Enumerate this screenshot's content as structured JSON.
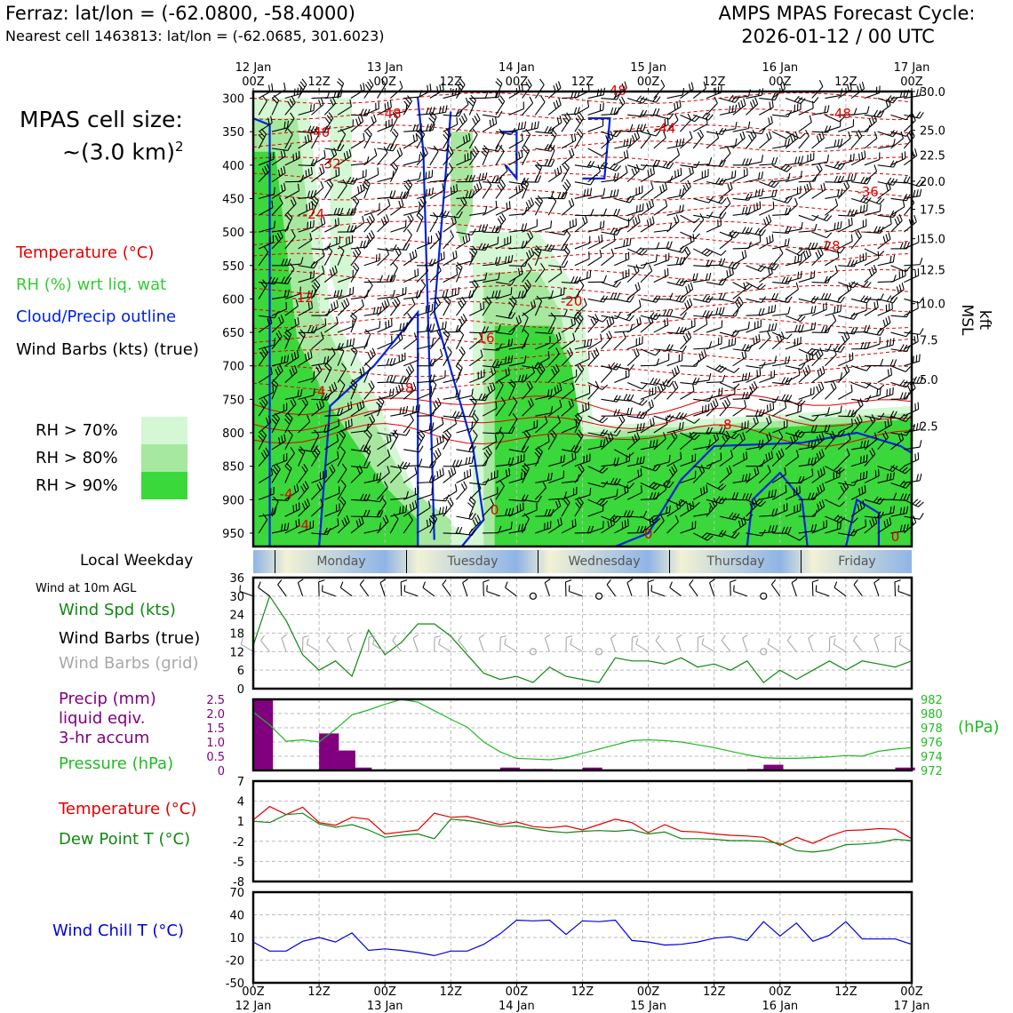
{
  "header": {
    "location": "Ferraz: lat/lon = (-62.0800, -58.4000)",
    "nearest_cell": "Nearest cell 1463813: lat/lon = (-62.0685, 301.6023)",
    "cycle_label": "AMPS MPAS Forecast Cycle:",
    "cycle_value": "2026-01-12 / 00 UTC"
  },
  "cell_size": {
    "label": "MPAS cell size:",
    "value": "~(3.0 km)",
    "exponent": "2"
  },
  "colors": {
    "temperature": "#e00000",
    "rh": "#33cc33",
    "rh70": "#d4f7d4",
    "rh80": "#a6e8a0",
    "rh90": "#3ad83a",
    "cloud": "#0022dd",
    "wind": "#000000",
    "wind_grid": "#a8a8a8",
    "wind_speed": "#118811",
    "precip": "#800080",
    "pressure": "#22bb22",
    "dewpoint": "#118811",
    "wind_chill": "#0000dd",
    "day_strip_blue": "#8fb4e6",
    "day_strip_light": "#f2f2d4"
  },
  "legend_top": [
    {
      "text": "Temperature (°C)",
      "color": "#e00000"
    },
    {
      "text": "RH (%) wrt liq. wat",
      "color": "#33cc33"
    },
    {
      "text": "Cloud/Precip outline",
      "color": "#0022dd"
    },
    {
      "text": "Wind Barbs (kts) (true)",
      "color": "#000000"
    }
  ],
  "rh_legend": [
    {
      "text": "RH > 70%",
      "color": "#d4f7d4"
    },
    {
      "text": "RH > 80%",
      "color": "#a6e8a0"
    },
    {
      "text": "RH > 90%",
      "color": "#3ad83a"
    }
  ],
  "time_axis": {
    "top_labels": [
      {
        "top": "12 Jan",
        "bottom": "00Z"
      },
      {
        "top": "",
        "bottom": "12Z"
      },
      {
        "top": "13 Jan",
        "bottom": "00Z"
      },
      {
        "top": "",
        "bottom": "12Z"
      },
      {
        "top": "14 Jan",
        "bottom": "00Z"
      },
      {
        "top": "",
        "bottom": "12Z"
      },
      {
        "top": "15 Jan",
        "bottom": "00Z"
      },
      {
        "top": "",
        "bottom": "12Z"
      },
      {
        "top": "16 Jan",
        "bottom": "00Z"
      },
      {
        "top": "",
        "bottom": "12Z"
      },
      {
        "top": "17 Jan",
        "bottom": "00Z"
      }
    ],
    "bottom_labels": [
      {
        "top": "00Z",
        "bottom": "12 Jan"
      },
      {
        "top": "12Z",
        "bottom": ""
      },
      {
        "top": "00Z",
        "bottom": "13 Jan"
      },
      {
        "top": "12Z",
        "bottom": ""
      },
      {
        "top": "00Z",
        "bottom": "14 Jan"
      },
      {
        "top": "12Z",
        "bottom": ""
      },
      {
        "top": "00Z",
        "bottom": "15 Jan"
      },
      {
        "top": "12Z",
        "bottom": ""
      },
      {
        "top": "00Z",
        "bottom": "16 Jan"
      },
      {
        "top": "12Z",
        "bottom": ""
      },
      {
        "top": "00Z",
        "bottom": "17 Jan"
      }
    ]
  },
  "weekday": {
    "label": "Local Weekday",
    "days": [
      "Monday",
      "Tuesday",
      "Wednesday",
      "Thursday",
      "Friday"
    ]
  },
  "chart_data": [
    {
      "type": "heatmap",
      "name": "vertical cross-section",
      "x_hours": [
        0,
        120
      ],
      "y_pressure_hpa": [
        970,
        290
      ],
      "y_tick_labels": [
        "300",
        "350",
        "400",
        "450",
        "500",
        "550",
        "600",
        "650",
        "700",
        "750",
        "800",
        "850",
        "900",
        "950"
      ],
      "y_ticks_hpa": [
        300,
        350,
        400,
        450,
        500,
        550,
        600,
        650,
        700,
        750,
        800,
        850,
        900,
        950
      ],
      "right_axis_label": "kft MSL",
      "right_tick_labels": [
        "30.0",
        "25.0",
        "22.5",
        "20.0",
        "17.5",
        "15.0",
        "12.5",
        "10.0",
        "7.5",
        "5.0",
        "2.5"
      ],
      "right_ticks_hpa": [
        290,
        348,
        385,
        424,
        466,
        510,
        556,
        607,
        661,
        720,
        790
      ],
      "temperature_contour_labels": [
        {
          "text": "-48",
          "hour": 66,
          "hpa": 295
        },
        {
          "text": "-48",
          "hour": 25,
          "hpa": 330
        },
        {
          "text": "-48",
          "hour": 107,
          "hpa": 330
        },
        {
          "text": "-40",
          "hour": 12,
          "hpa": 358
        },
        {
          "text": "-44",
          "hour": 75,
          "hpa": 352
        },
        {
          "text": "-32",
          "hour": 14,
          "hpa": 405
        },
        {
          "text": "-36",
          "hour": 112,
          "hpa": 447
        },
        {
          "text": "-24",
          "hour": 11,
          "hpa": 480
        },
        {
          "text": "-28",
          "hour": 105,
          "hpa": 528
        },
        {
          "text": "-12",
          "hour": 9,
          "hpa": 605
        },
        {
          "text": "-20",
          "hour": 58,
          "hpa": 610
        },
        {
          "text": "-16",
          "hour": 42,
          "hpa": 665
        },
        {
          "text": "-8",
          "hour": 28,
          "hpa": 740
        },
        {
          "text": "-4",
          "hour": 12,
          "hpa": 745
        },
        {
          "text": "-8",
          "hour": 86,
          "hpa": 795
        },
        {
          "text": "-4",
          "hour": 6,
          "hpa": 898
        },
        {
          "text": "0",
          "hour": 44,
          "hpa": 922
        },
        {
          "text": "-4",
          "hour": 9,
          "hpa": 945
        },
        {
          "text": "0",
          "hour": 72,
          "hpa": 958
        },
        {
          "text": "0",
          "hour": 117,
          "hpa": 962
        }
      ]
    },
    {
      "type": "line",
      "name": "wind at 10m",
      "title": "Wind at 10m AGL",
      "ylim": [
        0,
        36
      ],
      "y_ticks": [
        0,
        6,
        12,
        18,
        24,
        30,
        36
      ],
      "labels": [
        "Wind Spd (kts)",
        "Wind Barbs (true)",
        "Wind Barbs (grid)"
      ],
      "x_hours": [
        0,
        3,
        6,
        9,
        12,
        15,
        18,
        21,
        24,
        27,
        30,
        33,
        36,
        39,
        42,
        45,
        48,
        51,
        54,
        57,
        60,
        63,
        66,
        69,
        72,
        75,
        78,
        81,
        84,
        87,
        90,
        93,
        96,
        99,
        102,
        105,
        108,
        111,
        114,
        117,
        120
      ],
      "wind_speed_kts": [
        14,
        30,
        22,
        11,
        6,
        9,
        4,
        19,
        11,
        15,
        21,
        21,
        17,
        11,
        5,
        3,
        4,
        2,
        7,
        4,
        3,
        2,
        10,
        9,
        9,
        8,
        10,
        7,
        8,
        6,
        9,
        2,
        6,
        3,
        6,
        9,
        6,
        9,
        8,
        7,
        9
      ]
    },
    {
      "type": "bar",
      "name": "precip and pressure",
      "labels": [
        "Precip (mm)",
        "liquid eqiv.",
        "3-hr accum",
        "Pressure (hPa)"
      ],
      "precip_ylim": [
        0,
        2.5
      ],
      "precip_ticks": [
        "0",
        "0.5",
        "1.0",
        "1.5",
        "2.0",
        "2.5"
      ],
      "pressure_ylim": [
        972,
        982
      ],
      "pressure_ticks": [
        "972",
        "974",
        "976",
        "978",
        "980",
        "982"
      ],
      "pressure_axis_label": "(hPa)",
      "x_hours": [
        0,
        3,
        6,
        9,
        12,
        15,
        18,
        21,
        24,
        27,
        30,
        33,
        36,
        39,
        42,
        45,
        48,
        51,
        54,
        57,
        60,
        63,
        66,
        69,
        72,
        75,
        78,
        81,
        84,
        87,
        90,
        93,
        96,
        99,
        102,
        105,
        108,
        111,
        114,
        117,
        120
      ],
      "precip_mm": [
        2.5,
        0,
        0,
        0,
        1.3,
        0.7,
        0.1,
        0,
        0,
        0,
        0,
        0,
        0,
        0,
        0,
        0.1,
        0.05,
        0.05,
        0,
        0,
        0.1,
        0,
        0,
        0,
        0,
        0,
        0,
        0,
        0,
        0,
        0.05,
        0.2,
        0,
        0,
        0,
        0,
        0,
        0,
        0,
        0.1,
        0
      ],
      "pressure_hpa": [
        980.2,
        978.4,
        976.1,
        976.3,
        976.0,
        977.8,
        979.8,
        980.5,
        981.3,
        982.0,
        981.6,
        980.4,
        979.2,
        978.1,
        976.0,
        974.6,
        973.7,
        973.6,
        973.5,
        973.8,
        974.4,
        975.0,
        975.6,
        976.2,
        976.3,
        976.2,
        976.0,
        975.6,
        975.2,
        974.7,
        974.2,
        973.8,
        973.7,
        973.7,
        973.8,
        973.9,
        974.1,
        974.0,
        974.7,
        975.0,
        975.2
      ]
    },
    {
      "type": "line",
      "name": "temperature and dew point",
      "labels": [
        "Temperature (°C)",
        "Dew Point T (°C)"
      ],
      "ylim": [
        -8,
        7
      ],
      "y_ticks": [
        "7",
        "4",
        "1",
        "-2",
        "-5",
        "-8"
      ],
      "x_hours": [
        0,
        3,
        6,
        9,
        12,
        15,
        18,
        21,
        24,
        27,
        30,
        33,
        36,
        39,
        42,
        45,
        48,
        51,
        54,
        57,
        60,
        63,
        66,
        69,
        72,
        75,
        78,
        81,
        84,
        87,
        90,
        93,
        96,
        99,
        102,
        105,
        108,
        111,
        114,
        117,
        120
      ],
      "temperature_c": [
        1.2,
        3.2,
        2.0,
        3.1,
        0.8,
        0.4,
        1.6,
        1.3,
        -0.9,
        -0.6,
        -0.3,
        2.2,
        1.6,
        1.7,
        1.1,
        0.5,
        0.9,
        0.2,
        0.0,
        0.3,
        -0.3,
        0.5,
        1.3,
        0.8,
        -0.7,
        0.5,
        -0.5,
        -0.6,
        -0.9,
        -1.1,
        -1.2,
        -1.4,
        -2.6,
        -1.4,
        -2.3,
        -1.2,
        -0.4,
        -0.3,
        -0.1,
        -0.2,
        -1.6
      ],
      "dewpoint_c": [
        1.0,
        0.8,
        2.0,
        2.2,
        0.6,
        0.1,
        0.5,
        -0.3,
        -1.4,
        -1.1,
        -0.9,
        -1.6,
        1.3,
        1.1,
        0.7,
        0.2,
        0.3,
        -0.1,
        -0.5,
        -0.7,
        -0.5,
        -0.4,
        -0.5,
        -0.3,
        -0.9,
        -0.6,
        -1.6,
        -1.6,
        -1.7,
        -1.9,
        -1.9,
        -2.0,
        -2.3,
        -3.4,
        -3.6,
        -3.3,
        -2.5,
        -2.4,
        -2.2,
        -1.7,
        -1.9
      ]
    },
    {
      "type": "line",
      "name": "wind chill",
      "labels": [
        "Wind Chill T (°C)"
      ],
      "ylim": [
        -50,
        70
      ],
      "y_ticks": [
        "70",
        "40",
        "10",
        "-20",
        "-50"
      ],
      "x_hours": [
        0,
        3,
        6,
        9,
        12,
        15,
        18,
        21,
        24,
        27,
        30,
        33,
        36,
        39,
        42,
        45,
        48,
        51,
        54,
        57,
        60,
        63,
        66,
        69,
        72,
        75,
        78,
        81,
        84,
        87,
        90,
        93,
        96,
        99,
        102,
        105,
        108,
        111,
        114,
        117,
        120
      ],
      "wind_chill_c": [
        4,
        -8,
        -8,
        5,
        10,
        4,
        16,
        -7,
        -5,
        -7,
        -10,
        -14,
        -8,
        -8,
        1,
        15,
        33,
        32,
        33,
        14,
        32,
        31,
        33,
        6,
        4,
        0,
        1,
        4,
        9,
        11,
        6,
        31,
        12,
        29,
        5,
        13,
        31,
        8,
        8,
        8,
        1
      ]
    }
  ]
}
